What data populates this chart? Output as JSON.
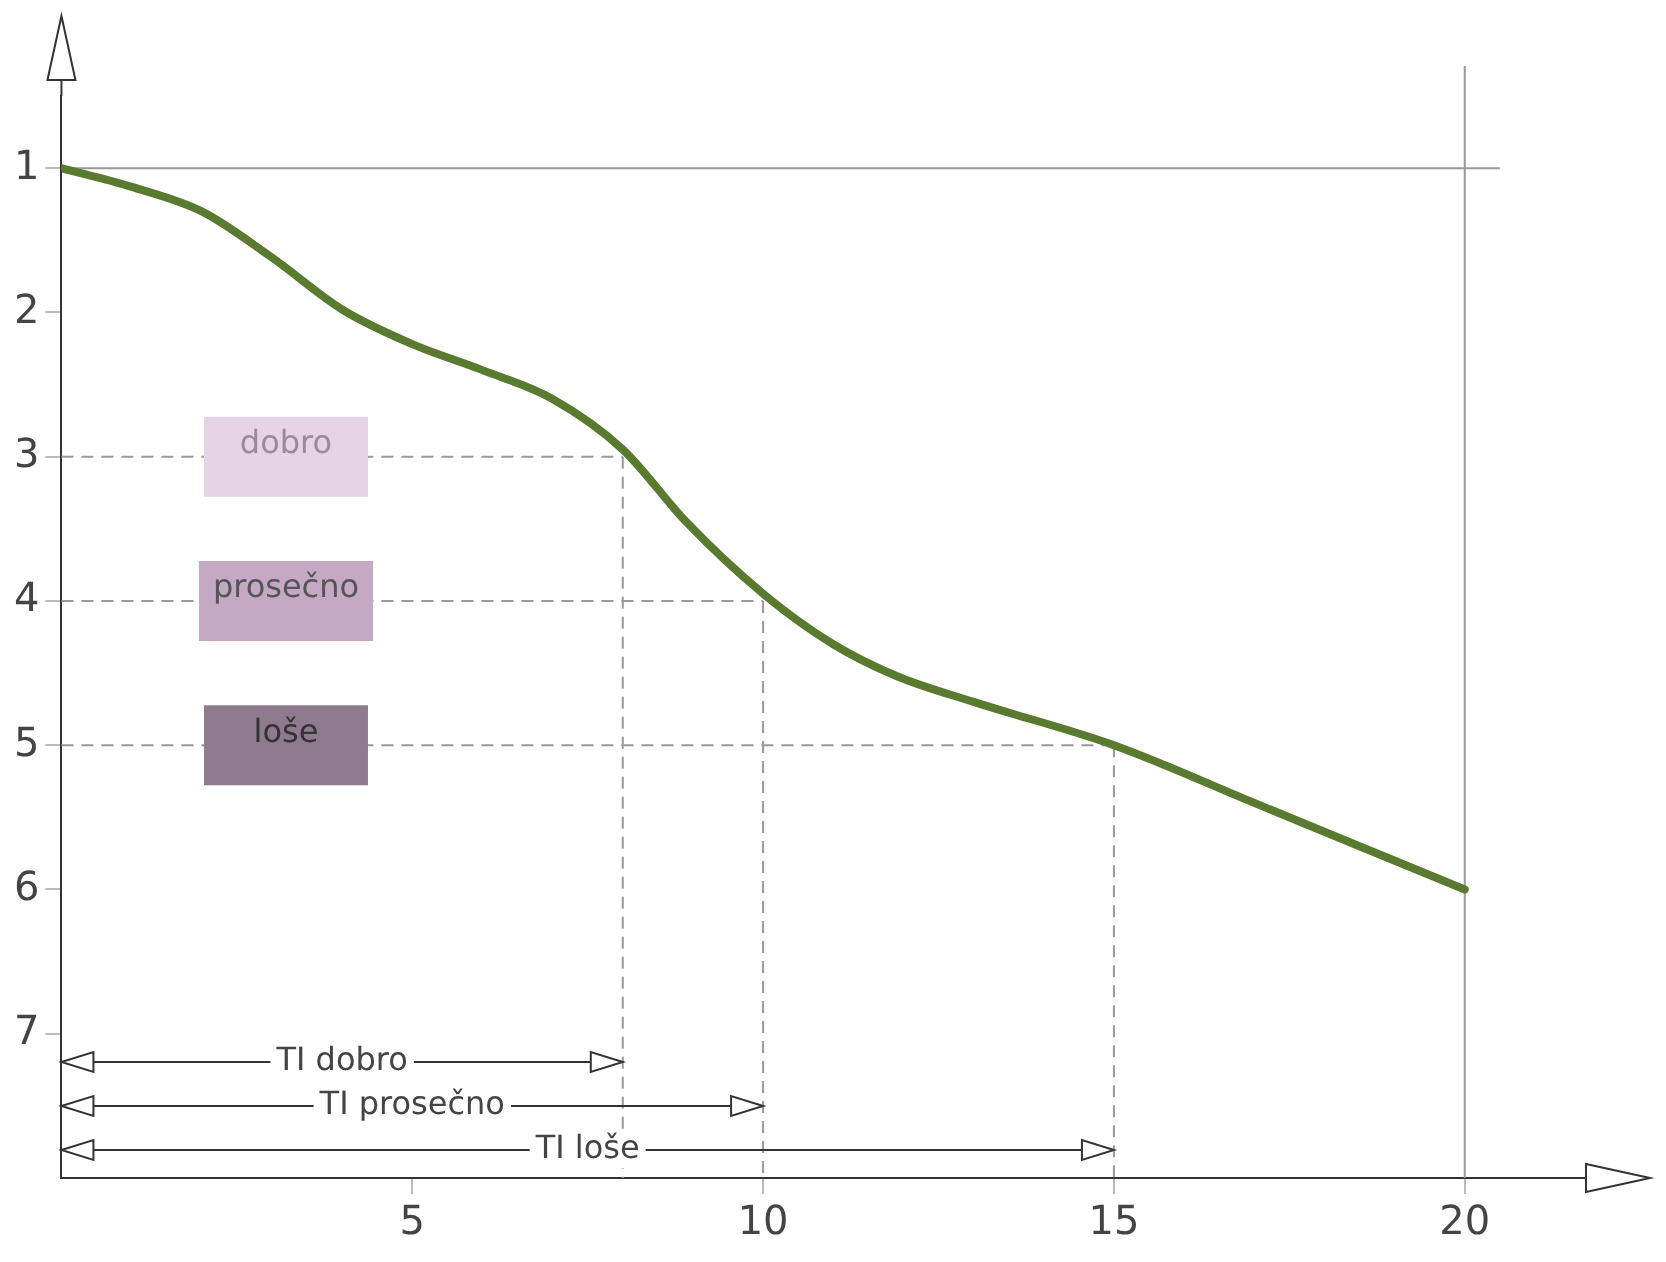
{
  "chart_data": {
    "type": "line",
    "x": [
      0,
      1,
      2,
      3,
      4,
      5,
      6,
      7,
      8,
      8.9,
      10,
      11,
      11.9,
      13,
      15,
      17,
      18.5,
      20
    ],
    "series": [
      {
        "color": "#5a7a30",
        "values": [
          1,
          1.13,
          1.3,
          1.62,
          1.98,
          2.22,
          2.4,
          2.6,
          2.95,
          3.45,
          3.95,
          4.3,
          4.52,
          4.7,
          5,
          5.4,
          5.7,
          6
        ]
      }
    ],
    "xlim": [
      0,
      21.5
    ],
    "xticks": [
      5,
      10,
      15,
      20
    ],
    "ylim": [
      8,
      0.5
    ],
    "yticks": [
      1,
      2,
      3,
      4,
      5,
      6,
      7
    ],
    "grid": false,
    "legend": false,
    "marker": "none",
    "line_style": "solid",
    "ref_lines": [
      {
        "axis": "y",
        "value": 1,
        "color": "#999999",
        "line_style": "solid"
      },
      {
        "axis": "x",
        "value": 20,
        "color": "#999999",
        "line_style": "solid"
      },
      {
        "axis": "y",
        "value": 3,
        "label": "dobro",
        "color": "#999999",
        "line_style": "dashed"
      },
      {
        "axis": "y",
        "value": 4,
        "label": "prosečno",
        "color": "#999999",
        "line_style": "dashed"
      },
      {
        "axis": "y",
        "value": 5,
        "label": "loše",
        "color": "#999999",
        "line_style": "dashed"
      },
      {
        "axis": "x",
        "value": 8,
        "color": "#999999",
        "line_style": "dashed"
      },
      {
        "axis": "x",
        "value": 10,
        "color": "#999999",
        "line_style": "dashed"
      },
      {
        "axis": "x",
        "value": 15,
        "color": "#999999",
        "line_style": "dashed"
      }
    ],
    "annotations": [
      "TI dobro",
      "TI prosečno",
      "TI loše"
    ]
  }
}
